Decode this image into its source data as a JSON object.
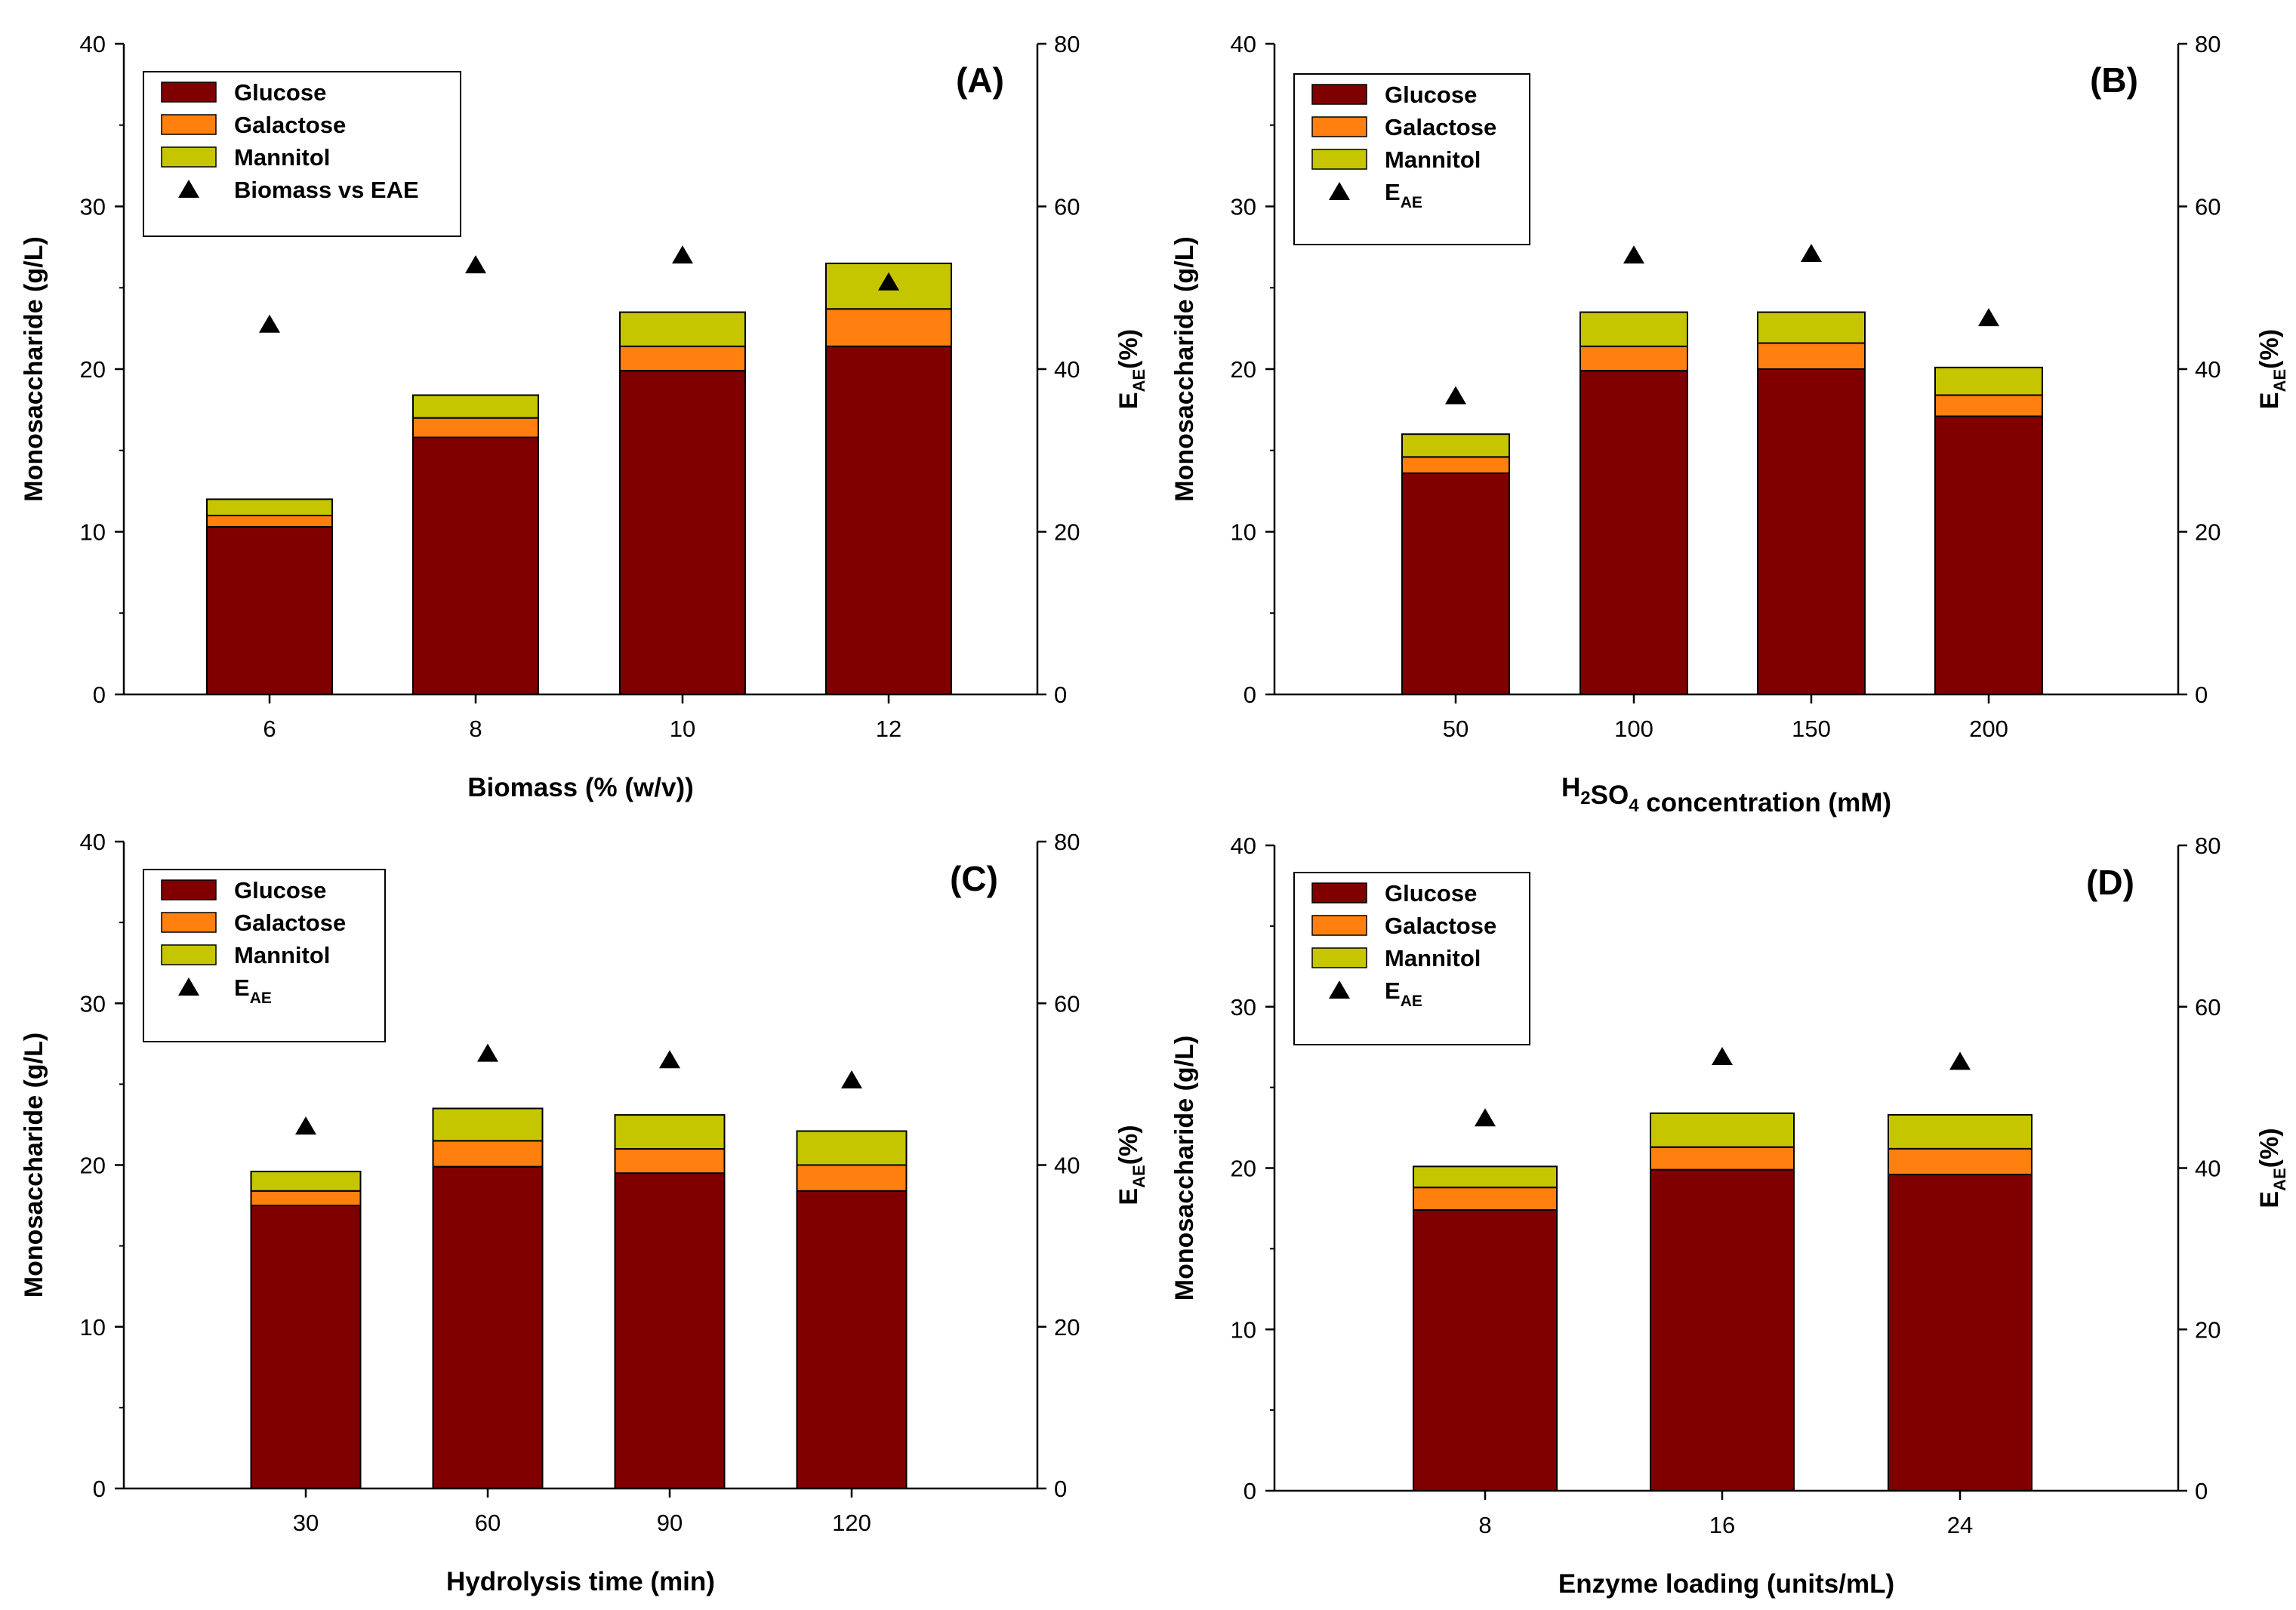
{
  "colors": {
    "glucose": "#800000",
    "galactose": "#ff7f0f",
    "mannitol": "#c6c600",
    "marker": "#000000",
    "axis": "#000000"
  },
  "chart_data": [
    {
      "type": "bar",
      "stacked": true,
      "panel_label": "(A)",
      "categories": [
        "6",
        "8",
        "10",
        "12"
      ],
      "xlabel": "Biomass (% (w/v))",
      "ylabel": "Monosaccharide (g/L)",
      "ylabel2_base": "E",
      "ylabel2_sub": "AE",
      "ylabel2_suffix": "(%)",
      "ylim": [
        0,
        40
      ],
      "yticks": [
        "0",
        "10",
        "20",
        "30",
        "40"
      ],
      "ylim2": [
        0,
        80
      ],
      "y2ticks": [
        "0",
        "20",
        "40",
        "60",
        "80"
      ],
      "legend_position": "top-left",
      "series": [
        {
          "name": "Glucose",
          "key": "glucose",
          "values": [
            10.3,
            15.8,
            19.9,
            21.4
          ]
        },
        {
          "name": "Galactose",
          "key": "galactose",
          "values": [
            0.7,
            1.2,
            1.5,
            2.3
          ]
        },
        {
          "name": "Mannitol",
          "key": "mannitol",
          "values": [
            1.0,
            1.4,
            2.1,
            2.8
          ]
        }
      ],
      "marker_series": {
        "name": "Biomass vs EAE",
        "sub": "",
        "values": [
          45.5,
          52.8,
          54.0,
          50.7
        ],
        "axis": "right"
      }
    },
    {
      "type": "bar",
      "stacked": true,
      "panel_label": "(B)",
      "categories": [
        "50",
        "100",
        "150",
        "200"
      ],
      "xlabel_parts": [
        {
          "t": "H",
          "sub": false
        },
        {
          "t": "2",
          "sub": true
        },
        {
          "t": "SO",
          "sub": false
        },
        {
          "t": "4",
          "sub": true
        },
        {
          "t": " concentration (mM)",
          "sub": false
        }
      ],
      "ylabel": "Monosaccharide (g/L)",
      "ylabel2_base": "E",
      "ylabel2_sub": "AE",
      "ylabel2_suffix": "(%)",
      "ylim": [
        0,
        40
      ],
      "yticks": [
        "0",
        "10",
        "20",
        "30",
        "40"
      ],
      "ylim2": [
        0,
        80
      ],
      "y2ticks": [
        "0",
        "20",
        "40",
        "60",
        "80"
      ],
      "legend_position": "top-left",
      "series": [
        {
          "name": "Glucose",
          "key": "glucose",
          "values": [
            13.6,
            19.9,
            20.0,
            17.1
          ]
        },
        {
          "name": "Galactose",
          "key": "galactose",
          "values": [
            1.0,
            1.5,
            1.6,
            1.3
          ]
        },
        {
          "name": "Mannitol",
          "key": "mannitol",
          "values": [
            1.4,
            2.1,
            1.9,
            1.7
          ]
        }
      ],
      "marker_series": {
        "name": "E",
        "sub": "AE",
        "values": [
          36.7,
          54.0,
          54.2,
          46.3
        ],
        "axis": "right"
      }
    },
    {
      "type": "bar",
      "stacked": true,
      "panel_label": "(C)",
      "categories": [
        "30",
        "60",
        "90",
        "120"
      ],
      "xlabel": "Hydrolysis time (min)",
      "ylabel": "Monosaccharide (g/L)",
      "ylabel2_base": "E",
      "ylabel2_sub": "AE",
      "ylabel2_suffix": "(%)",
      "ylim": [
        0,
        40
      ],
      "yticks": [
        "0",
        "10",
        "20",
        "30",
        "40"
      ],
      "ylim2": [
        0,
        80
      ],
      "y2ticks": [
        "0",
        "20",
        "40",
        "60",
        "80"
      ],
      "legend_position": "top-left",
      "series": [
        {
          "name": "Glucose",
          "key": "glucose",
          "values": [
            17.5,
            19.9,
            19.5,
            18.4
          ]
        },
        {
          "name": "Galactose",
          "key": "galactose",
          "values": [
            0.9,
            1.6,
            1.5,
            1.6
          ]
        },
        {
          "name": "Mannitol",
          "key": "mannitol",
          "values": [
            1.2,
            2.0,
            2.1,
            2.1
          ]
        }
      ],
      "marker_series": {
        "name": "E",
        "sub": "AE",
        "values": [
          44.8,
          53.8,
          53.0,
          50.5
        ],
        "axis": "right"
      }
    },
    {
      "type": "bar",
      "stacked": true,
      "panel_label": "(D)",
      "categories": [
        "8",
        "16",
        "24"
      ],
      "xlabel": "Enzyme loading (units/mL)",
      "ylabel": "Monosaccharide (g/L)",
      "ylabel2_base": "E",
      "ylabel2_sub": "AE",
      "ylabel2_suffix": "(%)",
      "ylim": [
        0,
        40
      ],
      "yticks": [
        "0",
        "10",
        "20",
        "30",
        "40"
      ],
      "ylim2": [
        0,
        80
      ],
      "y2ticks": [
        "0",
        "20",
        "40",
        "60",
        "80"
      ],
      "legend_position": "top-left",
      "series": [
        {
          "name": "Glucose",
          "key": "glucose",
          "values": [
            17.4,
            19.9,
            19.6
          ]
        },
        {
          "name": "Galactose",
          "key": "galactose",
          "values": [
            1.4,
            1.4,
            1.6
          ]
        },
        {
          "name": "Mannitol",
          "key": "mannitol",
          "values": [
            1.3,
            2.1,
            2.1
          ]
        }
      ],
      "marker_series": {
        "name": "E",
        "sub": "AE",
        "values": [
          46.2,
          53.8,
          53.2
        ],
        "axis": "right"
      }
    }
  ]
}
